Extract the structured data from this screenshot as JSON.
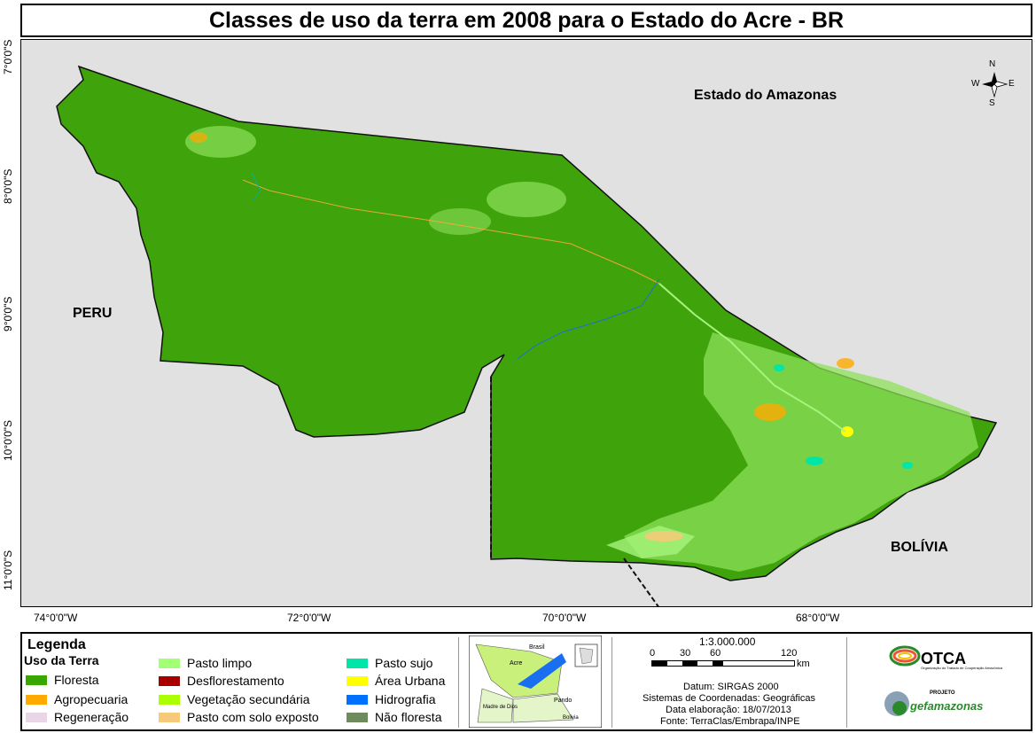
{
  "title": "Classes de uso da terra em 2008 para o Estado do Acre - BR",
  "map": {
    "labels": {
      "amazonas": "Estado do Amazonas",
      "peru": "PERU",
      "bolivia": "BOLÍVIA"
    },
    "compass": {
      "n": "N",
      "s": "S",
      "e": "E",
      "w": "W"
    },
    "lat_ticks": [
      "7°0'0\"S",
      "8°0'0\"S",
      "9°0'0\"S",
      "10°0'0\"S",
      "11°0'0\"S"
    ],
    "lon_ticks": [
      "74°0'0\"W",
      "72°0'0\"W",
      "70°0'0\"W",
      "68°0'0\"W"
    ],
    "colors": {
      "background": "#e1e1e1",
      "forest": "#3fa30c",
      "pasture": "#a6f47c",
      "road": "#ffa63a"
    }
  },
  "legend": {
    "title": "Legenda",
    "subtitle": "Uso da Terra",
    "items": [
      {
        "label": "Floresta",
        "color": "#38a800"
      },
      {
        "label": "Agropecuaria",
        "color": "#ffaa00"
      },
      {
        "label": "Regeneração",
        "color": "#e8d5e5"
      },
      {
        "label": "Pasto limpo",
        "color": "#a3ff73"
      },
      {
        "label": "Desflorestamento",
        "color": "#a80000"
      },
      {
        "label": "Vegetação secundária",
        "color": "#aaff00"
      },
      {
        "label": "Pasto com solo exposto",
        "color": "#f5ca7a"
      },
      {
        "label": "Pasto sujo",
        "color": "#00e6a9"
      },
      {
        "label": "Área Urbana",
        "color": "#ffff00"
      },
      {
        "label": "Hidrografia",
        "color": "#0070ff"
      },
      {
        "label": "Não floresta",
        "color": "#6f8a5c"
      }
    ]
  },
  "inset": {
    "labels": {
      "brasil": "Brasil",
      "acre": "Acre",
      "madre": "Madre de Dios",
      "pando": "Pando",
      "bolivia": "Bolivia"
    }
  },
  "scale": {
    "ratio": "1:3.000.000",
    "ticks": [
      "0",
      "30",
      "60",
      "120"
    ],
    "unit": "km"
  },
  "info": {
    "datum": "Datum: SIRGAS 2000",
    "coords": "Sistemas de Coordenadas: Geográficas",
    "date": "Data elaboração: 18/07/2013",
    "source": "Fonte: TerraClas/Embrapa/INPE"
  },
  "logos": {
    "otca": "OTCA",
    "otca_sub": "Organização do Tratado de Cooperação Amazônica",
    "projeto": "PROJETO",
    "gef": "gefamazonas"
  }
}
